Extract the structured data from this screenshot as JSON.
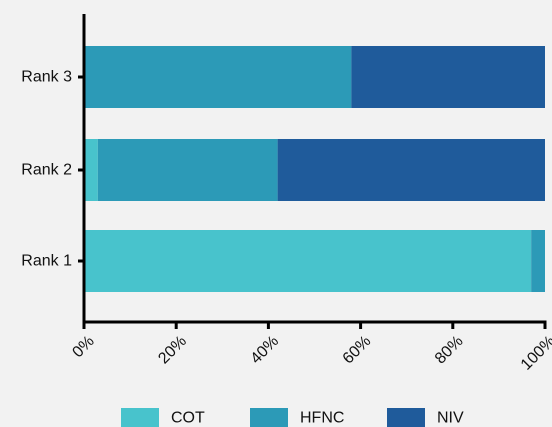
{
  "chart_data": {
    "type": "bar",
    "orientation": "horizontal",
    "stacked": true,
    "title": "",
    "xlabel": "",
    "ylabel": "",
    "xlim": [
      0,
      100
    ],
    "x_ticks": [
      0,
      20,
      40,
      60,
      80,
      100
    ],
    "x_tick_labels": [
      "0%",
      "20%",
      "40%",
      "60%",
      "80%",
      "100%"
    ],
    "categories": [
      "Rank 3",
      "Rank 2",
      "Rank 1"
    ],
    "series": [
      {
        "name": "COT",
        "color": "#48c3cc",
        "values": [
          0,
          3,
          97
        ]
      },
      {
        "name": "HFNC",
        "color": "#2c9ab7",
        "values": [
          58,
          39,
          3
        ]
      },
      {
        "name": "NIV",
        "color": "#1f5b9b",
        "values": [
          42,
          58,
          0
        ]
      }
    ],
    "grid": false,
    "legend_position": "bottom"
  }
}
